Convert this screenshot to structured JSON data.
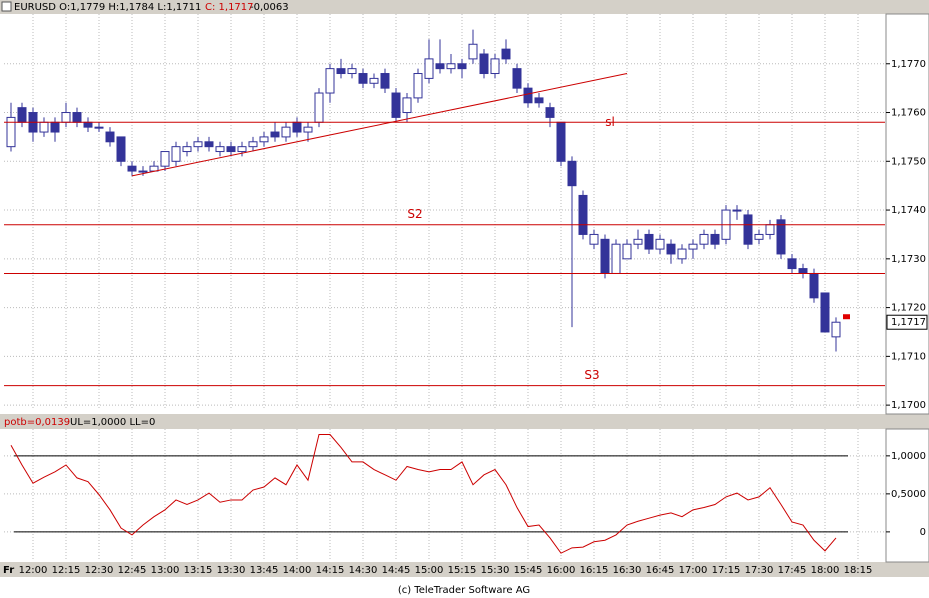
{
  "chart_data": [
    {
      "type": "candlestick",
      "title": "EURUSD O:1,1779 H:1,1784 L:1,1711",
      "close_text": "C: 1,1717",
      "change_text": "-0,0063",
      "day_label": "Fr",
      "x_labels": [
        "12:00",
        "12:15",
        "12:30",
        "12:45",
        "13:00",
        "13:15",
        "13:30",
        "13:45",
        "14:00",
        "14:15",
        "14:30",
        "14:45",
        "15:00",
        "15:15",
        "15:30",
        "15:45",
        "16:00",
        "16:15",
        "16:30",
        "16:45",
        "17:00",
        "17:15",
        "17:30",
        "17:45",
        "18:00",
        "18:15"
      ],
      "x": [
        "11:50",
        "11:55",
        "12:00",
        "12:05",
        "12:10",
        "12:15",
        "12:20",
        "12:25",
        "12:30",
        "12:35",
        "12:40",
        "12:45",
        "12:50",
        "12:55",
        "13:00",
        "13:05",
        "13:10",
        "13:15",
        "13:20",
        "13:25",
        "13:30",
        "13:35",
        "13:40",
        "13:45",
        "13:50",
        "13:55",
        "14:00",
        "14:05",
        "14:10",
        "14:15",
        "14:20",
        "14:25",
        "14:30",
        "14:35",
        "14:40",
        "14:45",
        "14:50",
        "14:55",
        "15:00",
        "15:05",
        "15:10",
        "15:15",
        "15:20",
        "15:25",
        "15:30",
        "15:35",
        "15:40",
        "15:45",
        "15:50",
        "15:55",
        "16:00",
        "16:05",
        "16:10",
        "16:15",
        "16:20",
        "16:25",
        "16:30",
        "16:35",
        "16:40",
        "16:45",
        "16:50",
        "16:55",
        "17:00",
        "17:05",
        "17:10",
        "17:15",
        "17:20",
        "17:25",
        "17:30",
        "17:35",
        "17:40",
        "17:45",
        "17:50",
        "17:55",
        "18:00",
        "18:05"
      ],
      "open": [
        1.1753,
        1.1761,
        1.176,
        1.1756,
        1.1758,
        1.1758,
        1.176,
        1.1758,
        1.1757,
        1.1756,
        1.1755,
        1.1749,
        1.1748,
        1.1748,
        1.1749,
        1.175,
        1.1752,
        1.1753,
        1.1754,
        1.1752,
        1.1753,
        1.1752,
        1.1753,
        1.1754,
        1.1756,
        1.1755,
        1.1758,
        1.1756,
        1.1758,
        1.1764,
        1.1769,
        1.1768,
        1.1768,
        1.1766,
        1.1768,
        1.1764,
        1.176,
        1.1763,
        1.1767,
        1.177,
        1.1769,
        1.177,
        1.1771,
        1.1772,
        1.1768,
        1.1773,
        1.1769,
        1.1765,
        1.1763,
        1.1761,
        1.1758,
        1.175,
        1.1743,
        1.1733,
        1.1734,
        1.1727,
        1.173,
        1.1733,
        1.1735,
        1.1732,
        1.1733,
        1.173,
        1.1732,
        1.1733,
        1.1735,
        1.1734,
        1.174,
        1.1739,
        1.1734,
        1.1735,
        1.1738,
        1.173,
        1.1728,
        1.1727,
        1.1723,
        1.1714
      ],
      "high": [
        1.1762,
        1.1762,
        1.1761,
        1.1759,
        1.1759,
        1.1762,
        1.1761,
        1.1759,
        1.1758,
        1.1757,
        1.1755,
        1.175,
        1.1749,
        1.175,
        1.1752,
        1.1754,
        1.1754,
        1.1755,
        1.1755,
        1.1754,
        1.1754,
        1.1754,
        1.1755,
        1.1756,
        1.1758,
        1.1758,
        1.1759,
        1.1758,
        1.1765,
        1.177,
        1.1771,
        1.177,
        1.1769,
        1.1768,
        1.1769,
        1.1765,
        1.1764,
        1.1769,
        1.1775,
        1.1775,
        1.1772,
        1.1771,
        1.1777,
        1.1773,
        1.1772,
        1.1775,
        1.177,
        1.1766,
        1.1764,
        1.1762,
        1.1758,
        1.1751,
        1.1744,
        1.1736,
        1.1735,
        1.1734,
        1.1734,
        1.1736,
        1.1736,
        1.1735,
        1.1734,
        1.1733,
        1.1734,
        1.1736,
        1.1736,
        1.1741,
        1.1741,
        1.174,
        1.1736,
        1.1738,
        1.1739,
        1.1731,
        1.1729,
        1.1728,
        1.1723,
        1.1718
      ],
      "low": [
        1.1752,
        1.1757,
        1.1754,
        1.1755,
        1.1754,
        1.1757,
        1.1757,
        1.1756,
        1.1756,
        1.1753,
        1.1749,
        1.1747,
        1.1747,
        1.1748,
        1.1748,
        1.1749,
        1.1751,
        1.1752,
        1.1752,
        1.1751,
        1.1751,
        1.1751,
        1.1752,
        1.1753,
        1.1754,
        1.1754,
        1.1755,
        1.1754,
        1.1757,
        1.1762,
        1.1767,
        1.1767,
        1.1765,
        1.1765,
        1.1764,
        1.1758,
        1.1758,
        1.1762,
        1.1766,
        1.1768,
        1.1768,
        1.1767,
        1.177,
        1.1767,
        1.1767,
        1.177,
        1.1764,
        1.1761,
        1.1761,
        1.1757,
        1.1749,
        1.1716,
        1.1734,
        1.1732,
        1.1726,
        1.1727,
        1.173,
        1.1732,
        1.1731,
        1.1731,
        1.1729,
        1.1729,
        1.173,
        1.1732,
        1.1732,
        1.1733,
        1.1738,
        1.1732,
        1.1733,
        1.1734,
        1.173,
        1.1727,
        1.1726,
        1.1721,
        1.1715,
        1.1711
      ],
      "close": [
        1.1759,
        1.1758,
        1.1756,
        1.1758,
        1.1756,
        1.176,
        1.1758,
        1.1757,
        1.1757,
        1.1754,
        1.175,
        1.1748,
        1.1748,
        1.1749,
        1.1752,
        1.1753,
        1.1753,
        1.1754,
        1.1753,
        1.1753,
        1.1752,
        1.1753,
        1.1754,
        1.1755,
        1.1755,
        1.1757,
        1.1756,
        1.1757,
        1.1764,
        1.1769,
        1.1768,
        1.1769,
        1.1766,
        1.1767,
        1.1765,
        1.1759,
        1.1763,
        1.1768,
        1.1771,
        1.1769,
        1.177,
        1.1769,
        1.1774,
        1.1768,
        1.1771,
        1.1771,
        1.1765,
        1.1762,
        1.1762,
        1.1759,
        1.175,
        1.1745,
        1.1735,
        1.1735,
        1.1727,
        1.1733,
        1.1733,
        1.1734,
        1.1732,
        1.1734,
        1.1731,
        1.1732,
        1.1733,
        1.1735,
        1.1733,
        1.174,
        1.174,
        1.1733,
        1.1735,
        1.1737,
        1.1731,
        1.1728,
        1.1727,
        1.1722,
        1.1715,
        1.1717
      ],
      "color": "#333399",
      "ylim": [
        1.1699,
        1.178
      ],
      "yticks": [
        {
          "value": 1.17,
          "label": "1,1700"
        },
        {
          "value": 1.171,
          "label": "1,1710"
        },
        {
          "value": 1.172,
          "label": "1,1720"
        },
        {
          "value": 1.173,
          "label": "1,1730"
        },
        {
          "value": 1.174,
          "label": "1,1740"
        },
        {
          "value": 1.175,
          "label": "1,1750"
        },
        {
          "value": 1.176,
          "label": "1,1760"
        },
        {
          "value": 1.177,
          "label": "1,1770"
        }
      ],
      "last_price": {
        "value": 1.1717,
        "label": "1,1717"
      },
      "levels": [
        {
          "value": 1.1758,
          "label": "sl"
        },
        {
          "value": 1.1737,
          "label": "S2"
        },
        {
          "value": 1.1727
        },
        {
          "value": 1.1704,
          "label": "S3"
        }
      ],
      "trendline": {
        "x": [
          "12:45",
          "16:30"
        ],
        "y": [
          1.1747,
          1.1768
        ]
      },
      "line_color": "#cc0000",
      "grid": true
    },
    {
      "type": "line",
      "title": "potb=0,0139",
      "subtitle": "UL=1,0000 LL=0",
      "values": [
        1.14,
        0.88,
        0.64,
        0.72,
        0.79,
        0.88,
        0.71,
        0.66,
        0.49,
        0.29,
        0.05,
        -0.04,
        0.09,
        0.2,
        0.29,
        0.42,
        0.36,
        0.42,
        0.51,
        0.39,
        0.42,
        0.42,
        0.55,
        0.59,
        0.71,
        0.62,
        0.88,
        0.68,
        1.28,
        1.28,
        1.11,
        0.92,
        0.92,
        0.82,
        0.75,
        0.68,
        0.86,
        0.82,
        0.79,
        0.82,
        0.82,
        0.92,
        0.62,
        0.75,
        0.82,
        0.62,
        0.32,
        0.07,
        0.09,
        -0.08,
        -0.28,
        -0.21,
        -0.2,
        -0.13,
        -0.11,
        -0.04,
        0.09,
        0.14,
        0.18,
        0.22,
        0.25,
        0.2,
        0.29,
        0.32,
        0.36,
        0.46,
        0.51,
        0.42,
        0.46,
        0.58,
        0.36,
        0.13,
        0.09,
        -0.11,
        -0.25,
        -0.08
      ],
      "color": "#cc0000",
      "levels": [
        1,
        0
      ],
      "ylim": [
        -0.37,
        1.34
      ],
      "yticks": [
        {
          "value": 1,
          "label": "1,0000"
        },
        {
          "value": 0.5,
          "label": "0,5000"
        },
        0
      ],
      "grid": true
    }
  ],
  "footer": "(c) TeleTrader Software AG"
}
